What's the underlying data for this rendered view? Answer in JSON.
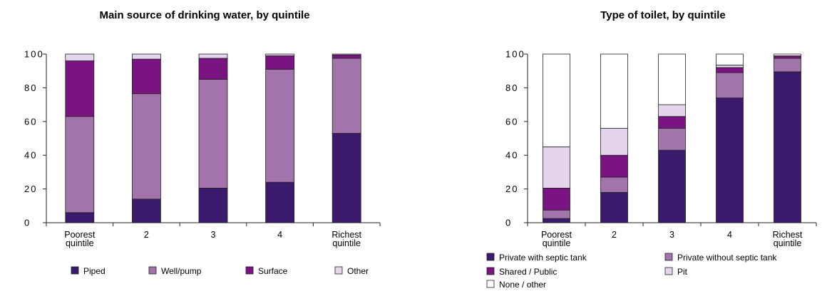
{
  "chart_data": [
    {
      "type": "bar",
      "stacked": true,
      "title": "Main source of drinking water, by quintile",
      "categories": [
        [
          "Poorest",
          "quintile"
        ],
        [
          "2"
        ],
        [
          "3"
        ],
        [
          "4"
        ],
        [
          "Richest",
          "quintile"
        ]
      ],
      "ylim": [
        0,
        100
      ],
      "yticks": [
        "0",
        "20",
        "40",
        "60",
        "80",
        "100"
      ],
      "legend_position": "bottom",
      "series": [
        {
          "name": "Piped",
          "color": "#3b1a6e",
          "values": [
            6,
            14,
            20.5,
            24,
            53
          ]
        },
        {
          "name": "Well/pump",
          "color": "#a274ab",
          "values": [
            57,
            62.5,
            64.5,
            67,
            44.5
          ]
        },
        {
          "name": "Surface",
          "color": "#7a1482",
          "values": [
            33,
            20.5,
            12.5,
            8,
            2
          ]
        },
        {
          "name": "Other",
          "color": "#e4d4ec",
          "values": [
            4,
            3,
            2.5,
            1,
            0.5
          ]
        }
      ]
    },
    {
      "type": "bar",
      "stacked": true,
      "title": "Type of toilet, by quintile",
      "categories": [
        [
          "Poorest",
          "quintile"
        ],
        [
          "2"
        ],
        [
          "3"
        ],
        [
          "4"
        ],
        [
          "Richest",
          "quintile"
        ]
      ],
      "ylim": [
        0,
        100
      ],
      "yticks": [
        "0",
        "20",
        "40",
        "60",
        "80",
        "100"
      ],
      "legend_position": "bottom",
      "series": [
        {
          "name": "Private with septic tank",
          "color": "#3b1a6e",
          "values": [
            2.5,
            18,
            43,
            74,
            89.5
          ]
        },
        {
          "name": "Private without septic tank",
          "color": "#a274ab",
          "values": [
            5,
            9,
            13,
            15,
            8
          ]
        },
        {
          "name": "Shared / Public",
          "color": "#7a1482",
          "values": [
            13,
            13,
            7,
            3,
            1.5
          ]
        },
        {
          "name": "Pit",
          "color": "#e4d4ec",
          "values": [
            24.5,
            16,
            7,
            1.5,
            0
          ]
        },
        {
          "name": "None / other",
          "color": "#ffffff",
          "values": [
            55,
            44,
            30,
            6.5,
            1
          ]
        }
      ]
    }
  ]
}
